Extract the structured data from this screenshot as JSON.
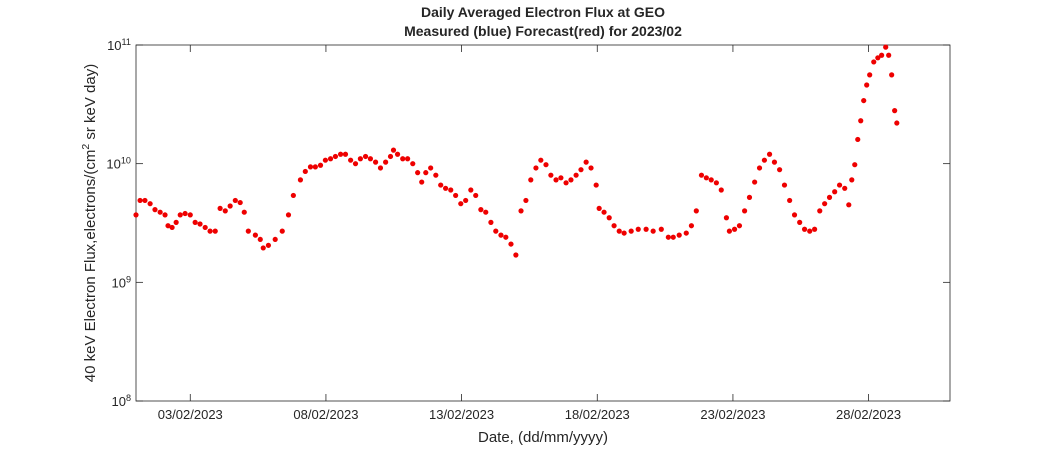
{
  "chart_data": {
    "type": "scatter",
    "title": "Daily Averaged Electron Flux at GEO",
    "subtitle": "Measured (blue) Forecast(red) for 2023/02",
    "x_label": "Date, (dd/mm/yyyy)",
    "y_label": "40 keV Electron Flux,electrons/(cm^2 sr keV day)",
    "y_log": true,
    "color": "#ee0000",
    "xlim": [
      0,
      30
    ],
    "xticks": [
      {
        "value": 2,
        "label": "03/02/2023"
      },
      {
        "value": 7,
        "label": "08/02/2023"
      },
      {
        "value": 12,
        "label": "13/02/2023"
      },
      {
        "value": 17,
        "label": "18/02/2023"
      },
      {
        "value": 22,
        "label": "23/02/2023"
      },
      {
        "value": 27,
        "label": "28/02/2023"
      }
    ],
    "ylim": [
      100000000,
      100000000000
    ],
    "yticks": [
      {
        "value": 100000000,
        "label": "10^8"
      },
      {
        "value": 1000000000,
        "label": "10^9"
      },
      {
        "value": 10000000000,
        "label": "10^10"
      },
      {
        "value": 100000000000,
        "label": "10^11"
      }
    ],
    "x": [
      0,
      0.15,
      0.33,
      0.52,
      0.7,
      0.89,
      1.07,
      1.18,
      1.33,
      1.48,
      1.63,
      1.81,
      2.0,
      2.18,
      2.36,
      2.55,
      2.73,
      2.92,
      3.1,
      3.29,
      3.47,
      3.66,
      3.84,
      3.99,
      4.14,
      4.4,
      4.58,
      4.69,
      4.88,
      5.13,
      5.39,
      5.62,
      5.8,
      6.06,
      6.24,
      6.43,
      6.61,
      6.8,
      6.98,
      7.17,
      7.35,
      7.54,
      7.72,
      7.91,
      8.09,
      8.27,
      8.46,
      8.64,
      8.83,
      9.01,
      9.2,
      9.38,
      9.49,
      9.64,
      9.83,
      10.01,
      10.2,
      10.38,
      10.53,
      10.68,
      10.86,
      11.05,
      11.23,
      11.41,
      11.6,
      11.78,
      11.97,
      12.15,
      12.34,
      12.52,
      12.71,
      12.89,
      13.08,
      13.26,
      13.45,
      13.63,
      13.82,
      14.0,
      14.19,
      14.37,
      14.55,
      14.74,
      14.92,
      15.11,
      15.29,
      15.48,
      15.66,
      15.85,
      16.03,
      16.22,
      16.4,
      16.59,
      16.77,
      16.96,
      17.07,
      17.25,
      17.44,
      17.62,
      17.81,
      17.99,
      18.25,
      18.51,
      18.8,
      19.06,
      19.36,
      19.62,
      19.8,
      20.02,
      20.28,
      20.47,
      20.65,
      20.84,
      21.02,
      21.2,
      21.39,
      21.57,
      21.76,
      21.87,
      22.06,
      22.24,
      22.43,
      22.61,
      22.8,
      22.98,
      23.16,
      23.35,
      23.53,
      23.72,
      23.9,
      24.09,
      24.27,
      24.46,
      24.64,
      24.83,
      25.01,
      25.2,
      25.38,
      25.56,
      25.75,
      25.93,
      26.12,
      26.27,
      26.38,
      26.49,
      26.6,
      26.71,
      26.82,
      26.93,
      27.04,
      27.19,
      27.34,
      27.48,
      27.63,
      27.74,
      27.85,
      27.96,
      28.04
    ],
    "values": [
      3700000000.0,
      4900000000.0,
      4900000000.0,
      4600000000.0,
      4100000000.0,
      3900000000.0,
      3700000000.0,
      3000000000.0,
      2900000000.0,
      3200000000.0,
      3700000000.0,
      3800000000.0,
      3700000000.0,
      3200000000.0,
      3100000000.0,
      2900000000.0,
      2700000000.0,
      2700000000.0,
      4200000000.0,
      4000000000.0,
      4400000000.0,
      4900000000.0,
      4700000000.0,
      3900000000.0,
      2700000000.0,
      2500000000.0,
      2300000000.0,
      1950000000.0,
      2050000000.0,
      2300000000.0,
      2700000000.0,
      3700000000.0,
      5400000000.0,
      7300000000.0,
      8600000000.0,
      9400000000.0,
      9400000000.0,
      9700000000.0,
      10700000000.0,
      11000000000.0,
      11500000000.0,
      12000000000.0,
      12000000000.0,
      10700000000.0,
      10000000000.0,
      11000000000.0,
      11500000000.0,
      11000000000.0,
      10300000000.0,
      9200000000.0,
      10300000000.0,
      11500000000.0,
      13000000000.0,
      12000000000.0,
      11000000000.0,
      11000000000.0,
      10000000000.0,
      8400000000.0,
      7000000000.0,
      8400000000.0,
      9200000000.0,
      8000000000.0,
      6600000000.0,
      6200000000.0,
      6000000000.0,
      5400000000.0,
      4600000000.0,
      4900000000.0,
      6000000000.0,
      5400000000.0,
      4100000000.0,
      3900000000.0,
      3200000000.0,
      2700000000.0,
      2500000000.0,
      2400000000.0,
      2100000000.0,
      1700000000.0,
      4000000000.0,
      4900000000.0,
      7300000000.0,
      9200000000.0,
      10700000000.0,
      9800000000.0,
      8000000000.0,
      7300000000.0,
      7600000000.0,
      6900000000.0,
      7300000000.0,
      8000000000.0,
      8900000000.0,
      10300000000.0,
      9200000000.0,
      6600000000.0,
      4200000000.0,
      3900000000.0,
      3500000000.0,
      3000000000.0,
      2700000000.0,
      2600000000.0,
      2700000000.0,
      2800000000.0,
      2800000000.0,
      2700000000.0,
      2800000000.0,
      2400000000.0,
      2400000000.0,
      2500000000.0,
      2600000000.0,
      3000000000.0,
      4000000000.0,
      8000000000.0,
      7600000000.0,
      7300000000.0,
      6900000000.0,
      6000000000.0,
      3500000000.0,
      2700000000.0,
      2800000000.0,
      3000000000.0,
      4000000000.0,
      5200000000.0,
      7000000000.0,
      9200000000.0,
      10700000000.0,
      12000000000.0,
      10300000000.0,
      8900000000.0,
      6600000000.0,
      4900000000.0,
      3700000000.0,
      3200000000.0,
      2800000000.0,
      2700000000.0,
      2800000000.0,
      4000000000.0,
      4600000000.0,
      5200000000.0,
      5800000000.0,
      6600000000.0,
      6200000000.0,
      4500000000.0,
      7300000000.0,
      9800000000.0,
      16000000000.0,
      23000000000.0,
      34000000000.0,
      46000000000.0,
      56000000000.0,
      72000000000.0,
      78000000000.0,
      82000000000.0,
      96000000000.0,
      82000000000.0,
      56000000000.0,
      28000000000.0,
      22000000000.0
    ]
  }
}
